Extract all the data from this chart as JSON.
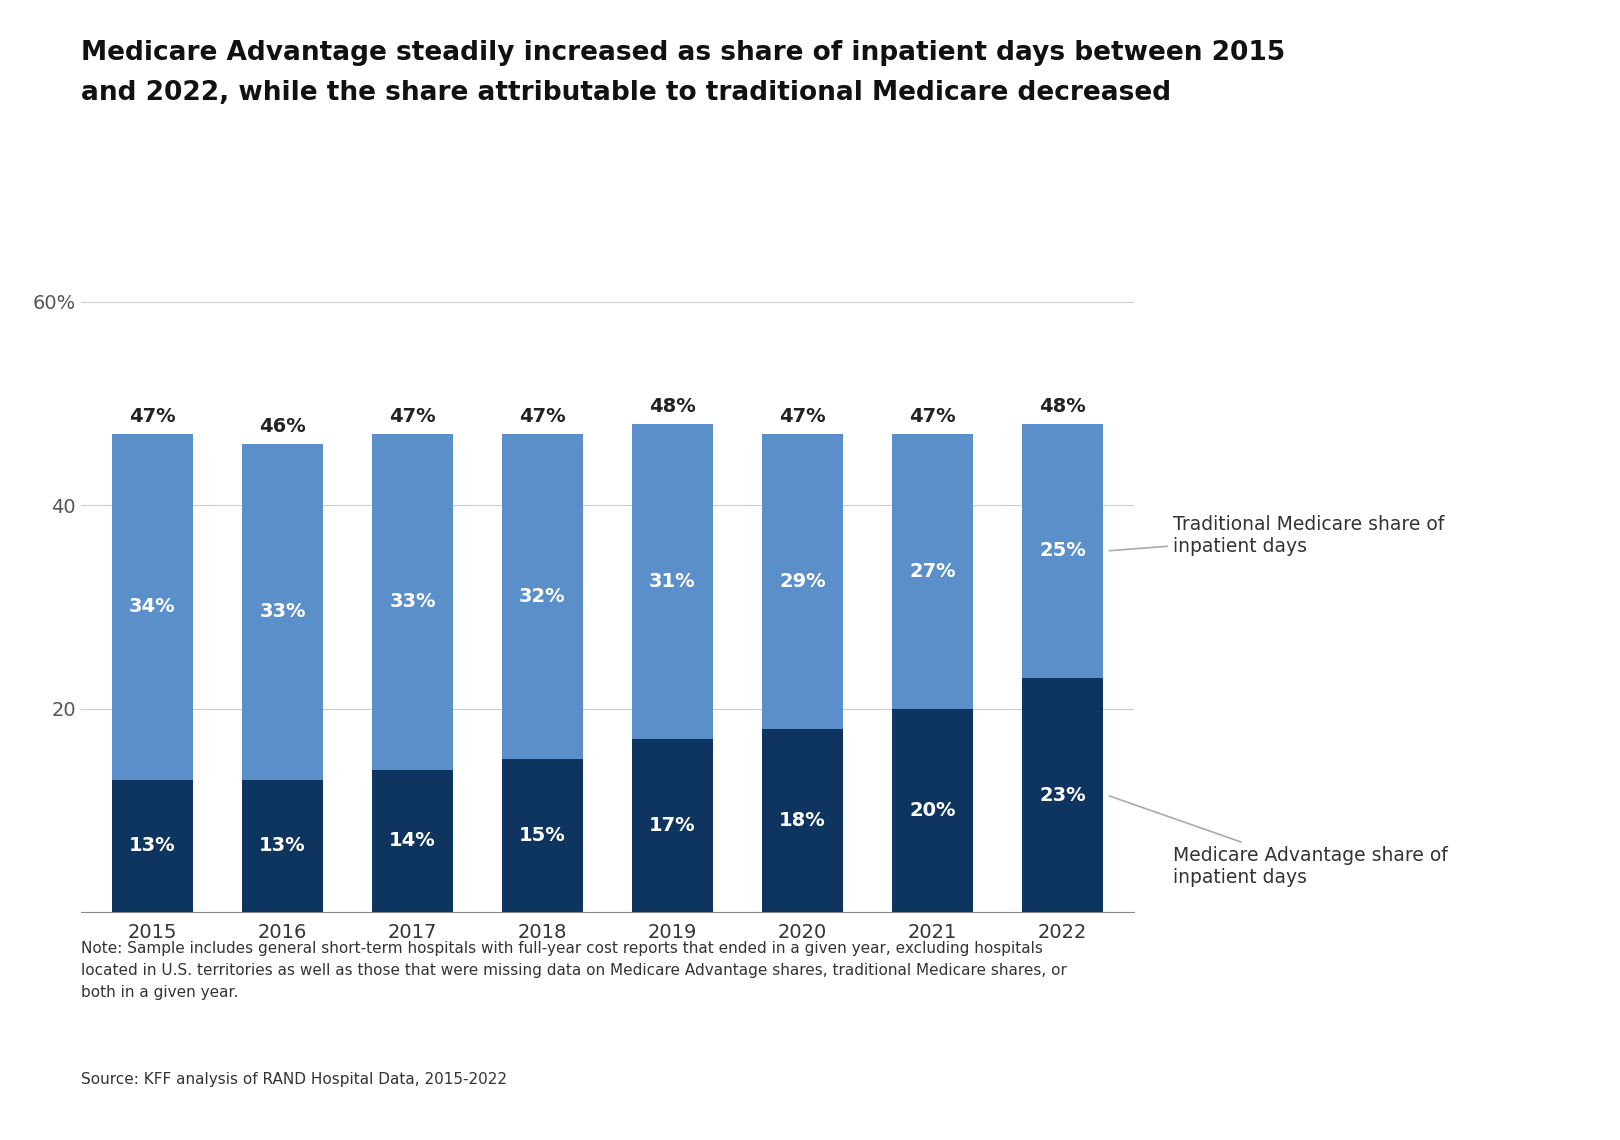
{
  "years": [
    "2015",
    "2016",
    "2017",
    "2018",
    "2019",
    "2020",
    "2021",
    "2022"
  ],
  "ma_values": [
    13,
    13,
    14,
    15,
    17,
    18,
    20,
    23
  ],
  "trad_values": [
    34,
    33,
    33,
    32,
    31,
    29,
    27,
    25
  ],
  "other_pct_labels": [
    "47%",
    "46%",
    "47%",
    "47%",
    "48%",
    "47%",
    "47%",
    "48%"
  ],
  "ma_color": "#0e3460",
  "trad_color": "#5b8fc9",
  "title_line1": "Medicare Advantage steadily increased as share of inpatient days between 2015",
  "title_line2": "and 2022, while the share attributable to traditional Medicare decreased",
  "yticks": [
    0,
    20,
    40,
    60
  ],
  "ytick_labels": [
    "",
    "20",
    "40",
    "60%"
  ],
  "ylim": [
    0,
    65
  ],
  "legend_trad": "Traditional Medicare share of\ninpatient days",
  "legend_ma": "Medicare Advantage share of\ninpatient days",
  "note_text": "Note: Sample includes general short-term hospitals with full-year cost reports that ended in a given year, excluding hospitals\nlocated in U.S. territories as well as those that were missing data on Medicare Advantage shares, traditional Medicare shares, or\nboth in a given year.",
  "source_text": "Source: KFF analysis of RAND Hospital Data, 2015-2022",
  "background_color": "#ffffff",
  "bar_width": 0.62
}
